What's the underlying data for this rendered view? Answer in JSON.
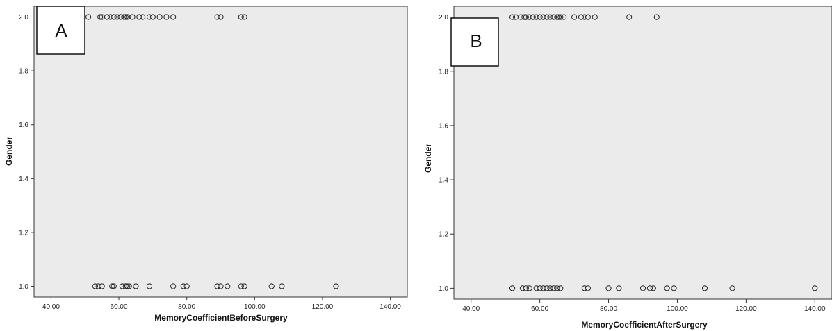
{
  "chart_data": [
    {
      "type": "scatter",
      "panel_label": "A",
      "xlabel": "MemoryCoefficientBeforeSurgery",
      "ylabel": "Gender",
      "xlim": [
        35,
        145
      ],
      "ylim": [
        0.96,
        2.04
      ],
      "xticks": [
        "40.00",
        "60.00",
        "80.00",
        "100.00",
        "120.00",
        "140.00"
      ],
      "yticks": [
        "1.0",
        "1.2",
        "1.4",
        "1.6",
        "1.8",
        "2.0"
      ],
      "grid": false,
      "plot_background": "#ebebeb",
      "marker": "open-circle",
      "points": [
        {
          "x": 51,
          "y": 2
        },
        {
          "x": 54.5,
          "y": 2
        },
        {
          "x": 55,
          "y": 2
        },
        {
          "x": 56.5,
          "y": 2
        },
        {
          "x": 57.5,
          "y": 2
        },
        {
          "x": 58.5,
          "y": 2
        },
        {
          "x": 59.5,
          "y": 2
        },
        {
          "x": 60.5,
          "y": 2
        },
        {
          "x": 61.5,
          "y": 2
        },
        {
          "x": 62,
          "y": 2
        },
        {
          "x": 62.5,
          "y": 2
        },
        {
          "x": 64,
          "y": 2
        },
        {
          "x": 66,
          "y": 2
        },
        {
          "x": 67,
          "y": 2
        },
        {
          "x": 69,
          "y": 2
        },
        {
          "x": 70,
          "y": 2
        },
        {
          "x": 72,
          "y": 2
        },
        {
          "x": 74,
          "y": 2
        },
        {
          "x": 76,
          "y": 2
        },
        {
          "x": 89,
          "y": 2
        },
        {
          "x": 90,
          "y": 2
        },
        {
          "x": 96,
          "y": 2
        },
        {
          "x": 97,
          "y": 2
        },
        {
          "x": 53,
          "y": 1
        },
        {
          "x": 54,
          "y": 1
        },
        {
          "x": 55,
          "y": 1
        },
        {
          "x": 58,
          "y": 1
        },
        {
          "x": 58.5,
          "y": 1
        },
        {
          "x": 61,
          "y": 1
        },
        {
          "x": 62,
          "y": 1
        },
        {
          "x": 62.5,
          "y": 1
        },
        {
          "x": 63,
          "y": 1
        },
        {
          "x": 65,
          "y": 1
        },
        {
          "x": 69,
          "y": 1
        },
        {
          "x": 76,
          "y": 1
        },
        {
          "x": 79,
          "y": 1
        },
        {
          "x": 80,
          "y": 1
        },
        {
          "x": 89,
          "y": 1
        },
        {
          "x": 90,
          "y": 1
        },
        {
          "x": 92,
          "y": 1
        },
        {
          "x": 96,
          "y": 1
        },
        {
          "x": 97,
          "y": 1
        },
        {
          "x": 105,
          "y": 1
        },
        {
          "x": 108,
          "y": 1
        },
        {
          "x": 124,
          "y": 1
        }
      ]
    },
    {
      "type": "scatter",
      "panel_label": "B",
      "xlabel": "MemoryCoefficientAfterSurgery",
      "ylabel": "Gender",
      "xlim": [
        35,
        145
      ],
      "ylim": [
        0.96,
        2.04
      ],
      "xticks": [
        "40.00",
        "60.00",
        "80.00",
        "100.00",
        "120.00",
        "140.00"
      ],
      "yticks": [
        "1.0",
        "1.2",
        "1.4",
        "1.6",
        "1.8",
        "2.0"
      ],
      "grid": false,
      "plot_background": "#ebebeb",
      "marker": "open-circle",
      "points": [
        {
          "x": 52,
          "y": 2
        },
        {
          "x": 53,
          "y": 2
        },
        {
          "x": 54.5,
          "y": 2
        },
        {
          "x": 55.5,
          "y": 2
        },
        {
          "x": 56,
          "y": 2
        },
        {
          "x": 57,
          "y": 2
        },
        {
          "x": 58,
          "y": 2
        },
        {
          "x": 59,
          "y": 2
        },
        {
          "x": 60,
          "y": 2
        },
        {
          "x": 61,
          "y": 2
        },
        {
          "x": 62,
          "y": 2
        },
        {
          "x": 63,
          "y": 2
        },
        {
          "x": 64,
          "y": 2
        },
        {
          "x": 65,
          "y": 2
        },
        {
          "x": 65.5,
          "y": 2
        },
        {
          "x": 66,
          "y": 2
        },
        {
          "x": 67,
          "y": 2
        },
        {
          "x": 70,
          "y": 2
        },
        {
          "x": 72,
          "y": 2
        },
        {
          "x": 73,
          "y": 2
        },
        {
          "x": 74,
          "y": 2
        },
        {
          "x": 76,
          "y": 2
        },
        {
          "x": 86,
          "y": 2
        },
        {
          "x": 94,
          "y": 2
        },
        {
          "x": 52,
          "y": 1
        },
        {
          "x": 55,
          "y": 1
        },
        {
          "x": 56,
          "y": 1
        },
        {
          "x": 57,
          "y": 1
        },
        {
          "x": 59,
          "y": 1
        },
        {
          "x": 60,
          "y": 1
        },
        {
          "x": 61,
          "y": 1
        },
        {
          "x": 62,
          "y": 1
        },
        {
          "x": 63,
          "y": 1
        },
        {
          "x": 64,
          "y": 1
        },
        {
          "x": 65,
          "y": 1
        },
        {
          "x": 66,
          "y": 1
        },
        {
          "x": 73,
          "y": 1
        },
        {
          "x": 74,
          "y": 1
        },
        {
          "x": 80,
          "y": 1
        },
        {
          "x": 83,
          "y": 1
        },
        {
          "x": 90,
          "y": 1
        },
        {
          "x": 92,
          "y": 1
        },
        {
          "x": 93,
          "y": 1
        },
        {
          "x": 97,
          "y": 1
        },
        {
          "x": 99,
          "y": 1
        },
        {
          "x": 108,
          "y": 1
        },
        {
          "x": 116,
          "y": 1
        },
        {
          "x": 140,
          "y": 1
        }
      ]
    }
  ]
}
